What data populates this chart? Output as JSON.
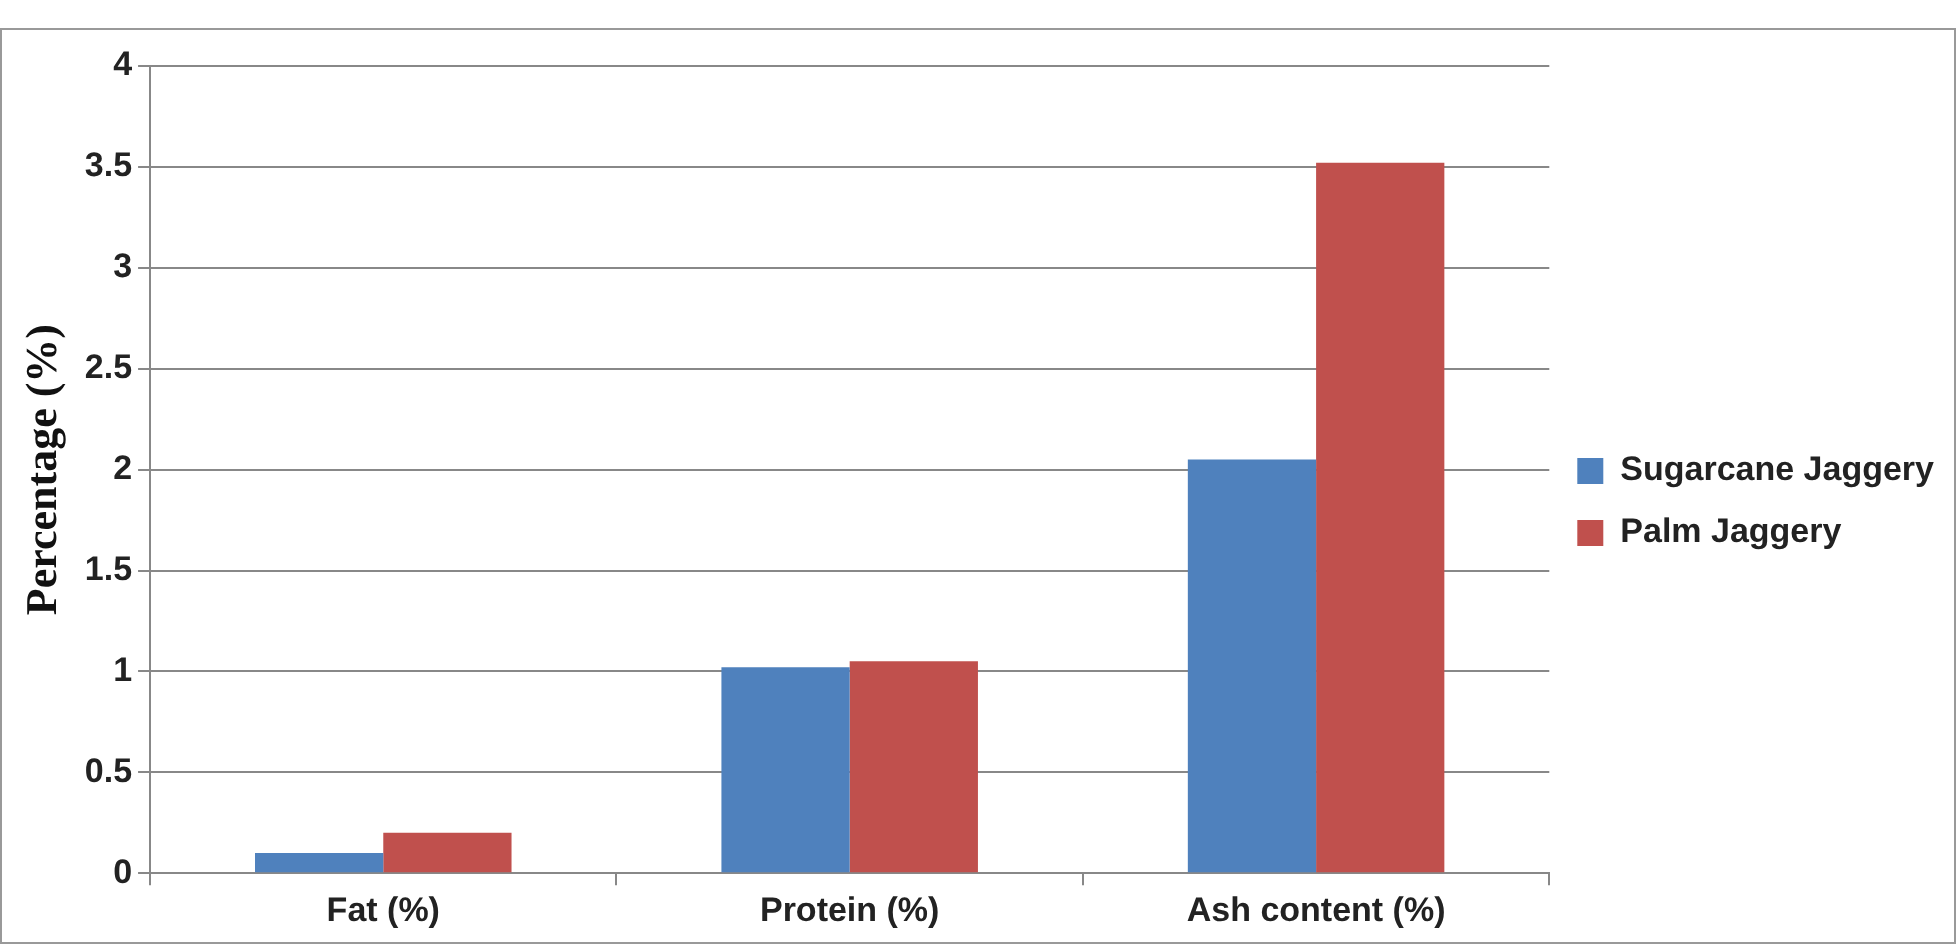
{
  "chart_data": {
    "type": "bar",
    "ylabel": "Percentage (%)",
    "categories": [
      "Fat (%)",
      "Protein (%)",
      "Ash content (%)"
    ],
    "series": [
      {
        "name": "Sugarcane Jaggery",
        "color": "#4f81bd",
        "values": [
          0.1,
          1.02,
          2.05
        ]
      },
      {
        "name": "Palm Jaggery",
        "color": "#c0504d",
        "values": [
          0.2,
          1.05,
          3.52
        ]
      }
    ],
    "ylim": [
      0,
      4
    ],
    "yticks": [
      0,
      0.5,
      1,
      1.5,
      2,
      2.5,
      3,
      3.5,
      4
    ],
    "grid": "y",
    "legend": "right"
  }
}
